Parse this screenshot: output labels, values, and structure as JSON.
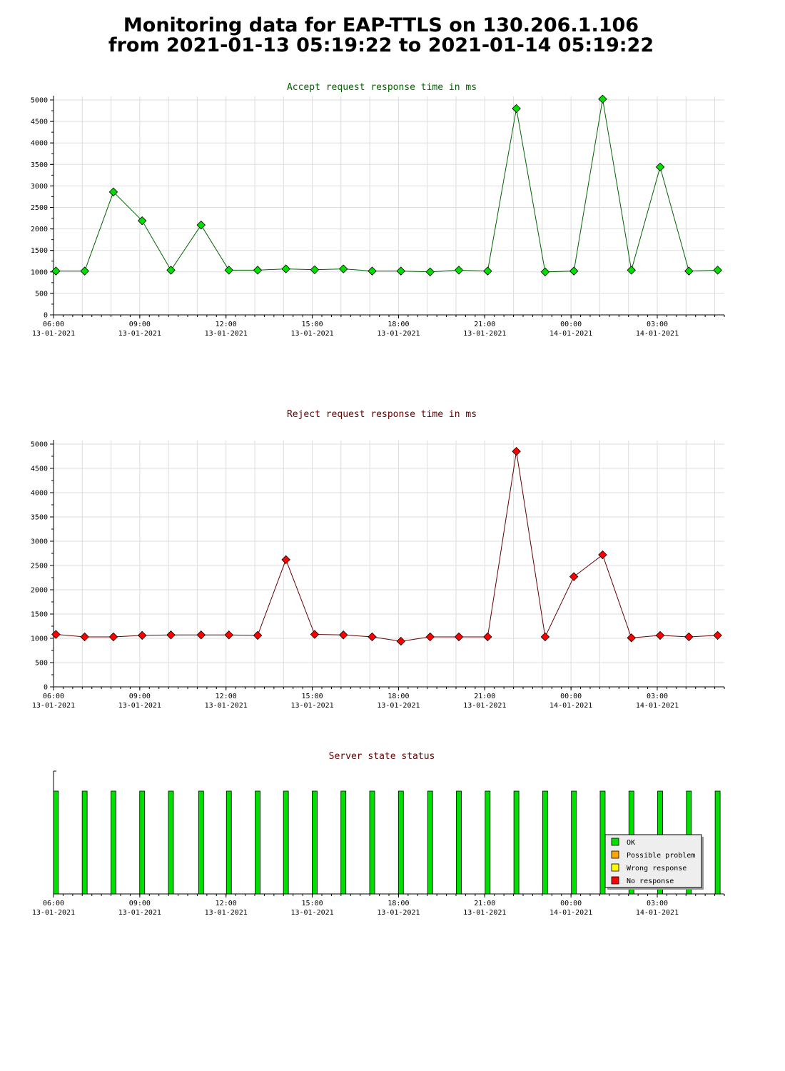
{
  "page": {
    "title_line1": "Monitoring data for EAP-TTLS on 130.206.1.106",
    "title_line2": "from 2021-01-13 05:19:22 to 2021-01-14 05:19:22"
  },
  "colors": {
    "accept_title": "#006400",
    "reject_title": "#640000",
    "status_title": "#640000",
    "accept_point": "#00e000",
    "accept_line": "#006400",
    "reject_point": "#ff0000",
    "reject_line": "#640000",
    "grid": "#dddddd"
  },
  "chart_data": [
    {
      "type": "line",
      "title": "Accept request response time in ms",
      "ylim": [
        0,
        5000
      ],
      "yticks": [
        0,
        500,
        1000,
        1500,
        2000,
        2500,
        3000,
        3500,
        4000,
        4500,
        5000
      ],
      "xlim": [
        "2021-01-13 06:00",
        "2021-01-14 05:20"
      ],
      "xticks": [
        {
          "time": "06:00",
          "date": "13-01-2021"
        },
        {
          "time": "09:00",
          "date": "13-01-2021"
        },
        {
          "time": "12:00",
          "date": "13-01-2021"
        },
        {
          "time": "15:00",
          "date": "13-01-2021"
        },
        {
          "time": "18:00",
          "date": "13-01-2021"
        },
        {
          "time": "21:00",
          "date": "13-01-2021"
        },
        {
          "time": "00:00",
          "date": "14-01-2021"
        },
        {
          "time": "03:00",
          "date": "14-01-2021"
        }
      ],
      "grid": true,
      "x": [
        "2021-01-13 06:05",
        "2021-01-13 07:05",
        "2021-01-13 08:05",
        "2021-01-13 09:05",
        "2021-01-13 10:05",
        "2021-01-13 11:08",
        "2021-01-13 12:06",
        "2021-01-13 13:06",
        "2021-01-13 14:05",
        "2021-01-13 15:05",
        "2021-01-13 16:05",
        "2021-01-13 17:05",
        "2021-01-13 18:05",
        "2021-01-13 19:06",
        "2021-01-13 20:06",
        "2021-01-13 21:06",
        "2021-01-13 22:06",
        "2021-01-13 23:06",
        "2021-01-14 00:06",
        "2021-01-14 01:06",
        "2021-01-14 02:06",
        "2021-01-14 03:06",
        "2021-01-14 04:06",
        "2021-01-14 05:06"
      ],
      "series": [
        {
          "values": [
            1020,
            1020,
            2860,
            2190,
            1040,
            2090,
            1040,
            1040,
            1070,
            1050,
            1070,
            1020,
            1020,
            1000,
            1040,
            1020,
            4800,
            1000,
            1020,
            5020,
            1040,
            3440,
            1020,
            1040
          ]
        }
      ]
    },
    {
      "type": "line",
      "title": "Reject request response time in ms",
      "ylim": [
        0,
        5000
      ],
      "yticks": [
        0,
        500,
        1000,
        1500,
        2000,
        2500,
        3000,
        3500,
        4000,
        4500,
        5000
      ],
      "xlim": [
        "2021-01-13 06:00",
        "2021-01-14 05:20"
      ],
      "xticks": [
        {
          "time": "06:00",
          "date": "13-01-2021"
        },
        {
          "time": "09:00",
          "date": "13-01-2021"
        },
        {
          "time": "12:00",
          "date": "13-01-2021"
        },
        {
          "time": "15:00",
          "date": "13-01-2021"
        },
        {
          "time": "18:00",
          "date": "13-01-2021"
        },
        {
          "time": "21:00",
          "date": "13-01-2021"
        },
        {
          "time": "00:00",
          "date": "14-01-2021"
        },
        {
          "time": "03:00",
          "date": "14-01-2021"
        }
      ],
      "grid": true,
      "x": [
        "2021-01-13 06:05",
        "2021-01-13 07:05",
        "2021-01-13 08:05",
        "2021-01-13 09:05",
        "2021-01-13 10:05",
        "2021-01-13 11:08",
        "2021-01-13 12:06",
        "2021-01-13 13:06",
        "2021-01-13 14:05",
        "2021-01-13 15:05",
        "2021-01-13 16:05",
        "2021-01-13 17:05",
        "2021-01-13 18:05",
        "2021-01-13 19:06",
        "2021-01-13 20:06",
        "2021-01-13 21:06",
        "2021-01-13 22:06",
        "2021-01-13 23:06",
        "2021-01-14 00:06",
        "2021-01-14 01:06",
        "2021-01-14 02:06",
        "2021-01-14 03:06",
        "2021-01-14 04:06",
        "2021-01-14 05:06"
      ],
      "series": [
        {
          "values": [
            1080,
            1030,
            1030,
            1060,
            1070,
            1070,
            1070,
            1060,
            2620,
            1080,
            1070,
            1030,
            940,
            1030,
            1030,
            1030,
            4850,
            1030,
            2270,
            2720,
            1010,
            1060,
            1030,
            1060
          ]
        }
      ]
    },
    {
      "type": "bar",
      "title": "Server state status",
      "xlim": [
        "2021-01-13 06:00",
        "2021-01-14 05:20"
      ],
      "xticks": [
        {
          "time": "06:00",
          "date": "13-01-2021"
        },
        {
          "time": "09:00",
          "date": "13-01-2021"
        },
        {
          "time": "12:00",
          "date": "13-01-2021"
        },
        {
          "time": "15:00",
          "date": "13-01-2021"
        },
        {
          "time": "18:00",
          "date": "13-01-2021"
        },
        {
          "time": "21:00",
          "date": "13-01-2021"
        },
        {
          "time": "00:00",
          "date": "14-01-2021"
        },
        {
          "time": "03:00",
          "date": "14-01-2021"
        }
      ],
      "grid": false,
      "x": [
        "2021-01-13 06:05",
        "2021-01-13 07:05",
        "2021-01-13 08:05",
        "2021-01-13 09:05",
        "2021-01-13 10:05",
        "2021-01-13 11:08",
        "2021-01-13 12:06",
        "2021-01-13 13:06",
        "2021-01-13 14:05",
        "2021-01-13 15:05",
        "2021-01-13 16:05",
        "2021-01-13 17:05",
        "2021-01-13 18:05",
        "2021-01-13 19:06",
        "2021-01-13 20:06",
        "2021-01-13 21:06",
        "2021-01-13 22:06",
        "2021-01-13 23:06",
        "2021-01-14 00:06",
        "2021-01-14 01:06",
        "2021-01-14 02:06",
        "2021-01-14 03:06",
        "2021-01-14 04:06",
        "2021-01-14 05:06"
      ],
      "states": [
        "OK",
        "OK",
        "OK",
        "OK",
        "OK",
        "OK",
        "OK",
        "OK",
        "OK",
        "OK",
        "OK",
        "OK",
        "OK",
        "OK",
        "OK",
        "OK",
        "OK",
        "OK",
        "OK",
        "OK",
        "OK",
        "OK",
        "OK",
        "OK"
      ],
      "legend_position": "bottom-right",
      "legend": [
        {
          "label": "OK",
          "color": "#00e000"
        },
        {
          "label": "Possible problem",
          "color": "#ffa500"
        },
        {
          "label": "Wrong response",
          "color": "#ffff00"
        },
        {
          "label": "No response",
          "color": "#ff0000"
        }
      ]
    }
  ]
}
